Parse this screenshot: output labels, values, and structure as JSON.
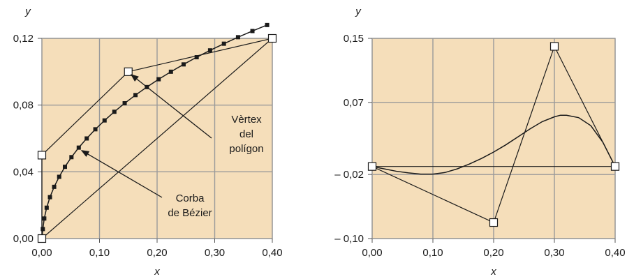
{
  "chart_data": [
    {
      "type": "line",
      "xlabel": "x",
      "ylabel": "y",
      "xlim": [
        0,
        0.4
      ],
      "ylim": [
        0,
        0.12
      ],
      "xticks": [
        {
          "value": 0.0,
          "label": "0,00"
        },
        {
          "value": 0.1,
          "label": "0,10"
        },
        {
          "value": 0.2,
          "label": "0,20"
        },
        {
          "value": 0.3,
          "label": "0,30"
        },
        {
          "value": 0.4,
          "label": "0,40"
        }
      ],
      "yticks": [
        {
          "value": 0.0,
          "label": "0,00"
        },
        {
          "value": 0.04,
          "label": "0,04"
        },
        {
          "value": 0.08,
          "label": "0,08"
        },
        {
          "value": 0.12,
          "label": "0,12"
        }
      ],
      "grid": true,
      "control_polygon": [
        [
          0.0,
          0.0
        ],
        [
          0.0,
          0.05
        ],
        [
          0.15,
          0.1
        ],
        [
          0.4,
          0.12
        ],
        [
          0.0,
          0.0
        ]
      ],
      "curve_points": [
        [
          0.0,
          0.0
        ],
        [
          0.0016,
          0.0057
        ],
        [
          0.0041,
          0.012
        ],
        [
          0.0083,
          0.0185
        ],
        [
          0.014,
          0.0248
        ],
        [
          0.0213,
          0.031
        ],
        [
          0.03,
          0.037
        ],
        [
          0.04,
          0.043
        ],
        [
          0.0513,
          0.0488
        ],
        [
          0.064,
          0.0545
        ],
        [
          0.0778,
          0.06
        ],
        [
          0.0928,
          0.0655
        ],
        [
          0.1088,
          0.0708
        ],
        [
          0.1258,
          0.076
        ],
        [
          0.1437,
          0.0811
        ],
        [
          0.1625,
          0.086
        ],
        [
          0.1822,
          0.0908
        ],
        [
          0.2027,
          0.0955
        ],
        [
          0.224,
          0.1
        ],
        [
          0.246,
          0.1044
        ],
        [
          0.2687,
          0.1087
        ],
        [
          0.292,
          0.1128
        ],
        [
          0.316,
          0.1168
        ],
        [
          0.3405,
          0.1207
        ],
        [
          0.3655,
          0.1244
        ],
        [
          0.391,
          0.128
        ]
      ],
      "annotations": [
        {
          "lines": [
            "Vèrtex",
            "del",
            "polígon"
          ],
          "target": [
            0.15,
            0.1
          ]
        },
        {
          "lines": [
            "Corba",
            "de Bézier"
          ],
          "target": [
            0.064,
            0.0545
          ]
        }
      ]
    },
    {
      "type": "line",
      "xlabel": "x",
      "ylabel": "y",
      "xlim": [
        0,
        0.4
      ],
      "ylim": [
        -0.1,
        0.15
      ],
      "xticks": [
        {
          "value": 0.0,
          "label": "0,00"
        },
        {
          "value": 0.1,
          "label": "0,10"
        },
        {
          "value": 0.2,
          "label": "0,20"
        },
        {
          "value": 0.3,
          "label": "0,30"
        },
        {
          "value": 0.4,
          "label": "0,40"
        }
      ],
      "yticks": [
        {
          "value": -0.1,
          "label": "– 0,10"
        },
        {
          "value": -0.02,
          "label": "– 0,02"
        },
        {
          "value": 0.07,
          "label": "0,07"
        },
        {
          "value": 0.15,
          "label": "0,15"
        }
      ],
      "grid": true,
      "control_polygon": [
        [
          0.0,
          -0.01
        ],
        [
          0.2,
          -0.08
        ],
        [
          0.3,
          0.14
        ],
        [
          0.4,
          -0.01
        ],
        [
          0.0,
          -0.01
        ]
      ],
      "curve_points": [
        [
          0.0,
          -0.01
        ],
        [
          0.02,
          -0.013
        ],
        [
          0.04,
          -0.016
        ],
        [
          0.06,
          -0.018
        ],
        [
          0.08,
          -0.0195
        ],
        [
          0.1,
          -0.0195
        ],
        [
          0.12,
          -0.0175
        ],
        [
          0.14,
          -0.013
        ],
        [
          0.16,
          -0.007
        ],
        [
          0.18,
          0.0
        ],
        [
          0.2,
          0.008
        ],
        [
          0.22,
          0.017
        ],
        [
          0.24,
          0.027
        ],
        [
          0.26,
          0.037
        ],
        [
          0.28,
          0.046
        ],
        [
          0.3,
          0.052
        ],
        [
          0.31,
          0.054
        ],
        [
          0.32,
          0.054
        ],
        [
          0.34,
          0.051
        ],
        [
          0.36,
          0.041
        ],
        [
          0.38,
          0.02
        ],
        [
          0.4,
          -0.01
        ]
      ]
    }
  ]
}
